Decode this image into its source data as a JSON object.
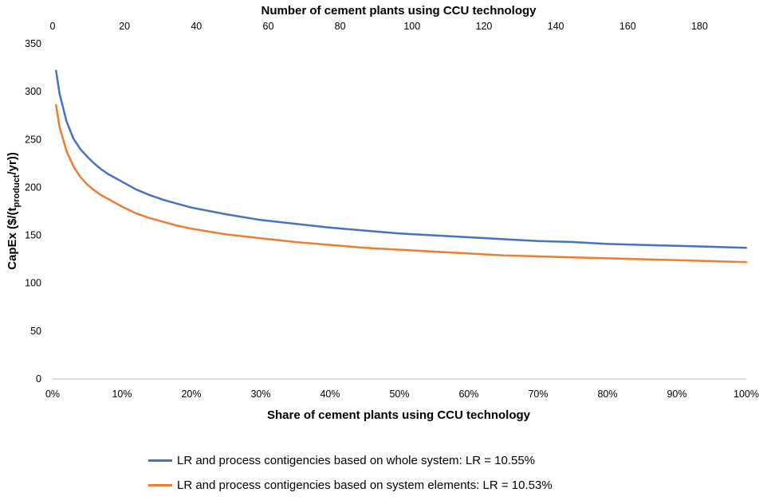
{
  "chart_data": {
    "type": "line",
    "top_xlabel": "Number of cement plants using CCU technology",
    "top_xticks": [
      "0",
      "20",
      "40",
      "60",
      "80",
      "100",
      "120",
      "140",
      "160",
      "180"
    ],
    "top_xlim": [
      0,
      193
    ],
    "xlabel": "Share of cement plants using CCU technology",
    "xticks": [
      "0%",
      "10%",
      "20%",
      "30%",
      "40%",
      "50%",
      "60%",
      "70%",
      "80%",
      "90%",
      "100%"
    ],
    "xlim": [
      0,
      100
    ],
    "ylabel_main": "CapEx ($/(t",
    "ylabel_sub": "product",
    "ylabel_end": "/yr))",
    "yticks": [
      "0",
      "50",
      "100",
      "150",
      "200",
      "250",
      "300",
      "350"
    ],
    "ylim": [
      0,
      350
    ],
    "x": [
      0.5,
      1,
      2,
      3,
      4,
      5,
      6,
      7,
      8,
      9,
      10,
      12,
      14,
      16,
      18,
      20,
      25,
      30,
      35,
      40,
      45,
      50,
      55,
      60,
      65,
      70,
      75,
      80,
      85,
      90,
      95,
      100
    ],
    "series": [
      {
        "name": "LR and process contigencies based on whole system: LR = 10.55%",
        "color": "#4472C4",
        "values": [
          322,
          298,
          269,
          251,
          240,
          232,
          225,
          219,
          214,
          210,
          206,
          198,
          192,
          187,
          183,
          179,
          172,
          166,
          162,
          158,
          155,
          152,
          150,
          148,
          146,
          144,
          143,
          141,
          140,
          139,
          138,
          137
        ]
      },
      {
        "name": "LR and process contigencies based on system elements: LR = 10.53%",
        "color": "#ED7D31",
        "values": [
          286,
          263,
          238,
          222,
          211,
          203,
          197,
          192,
          188,
          184,
          180,
          173,
          168,
          164,
          160,
          157,
          151,
          147,
          143,
          140,
          137,
          135,
          133,
          131,
          129,
          128,
          127,
          126,
          125,
          124,
          123,
          122
        ]
      }
    ]
  }
}
